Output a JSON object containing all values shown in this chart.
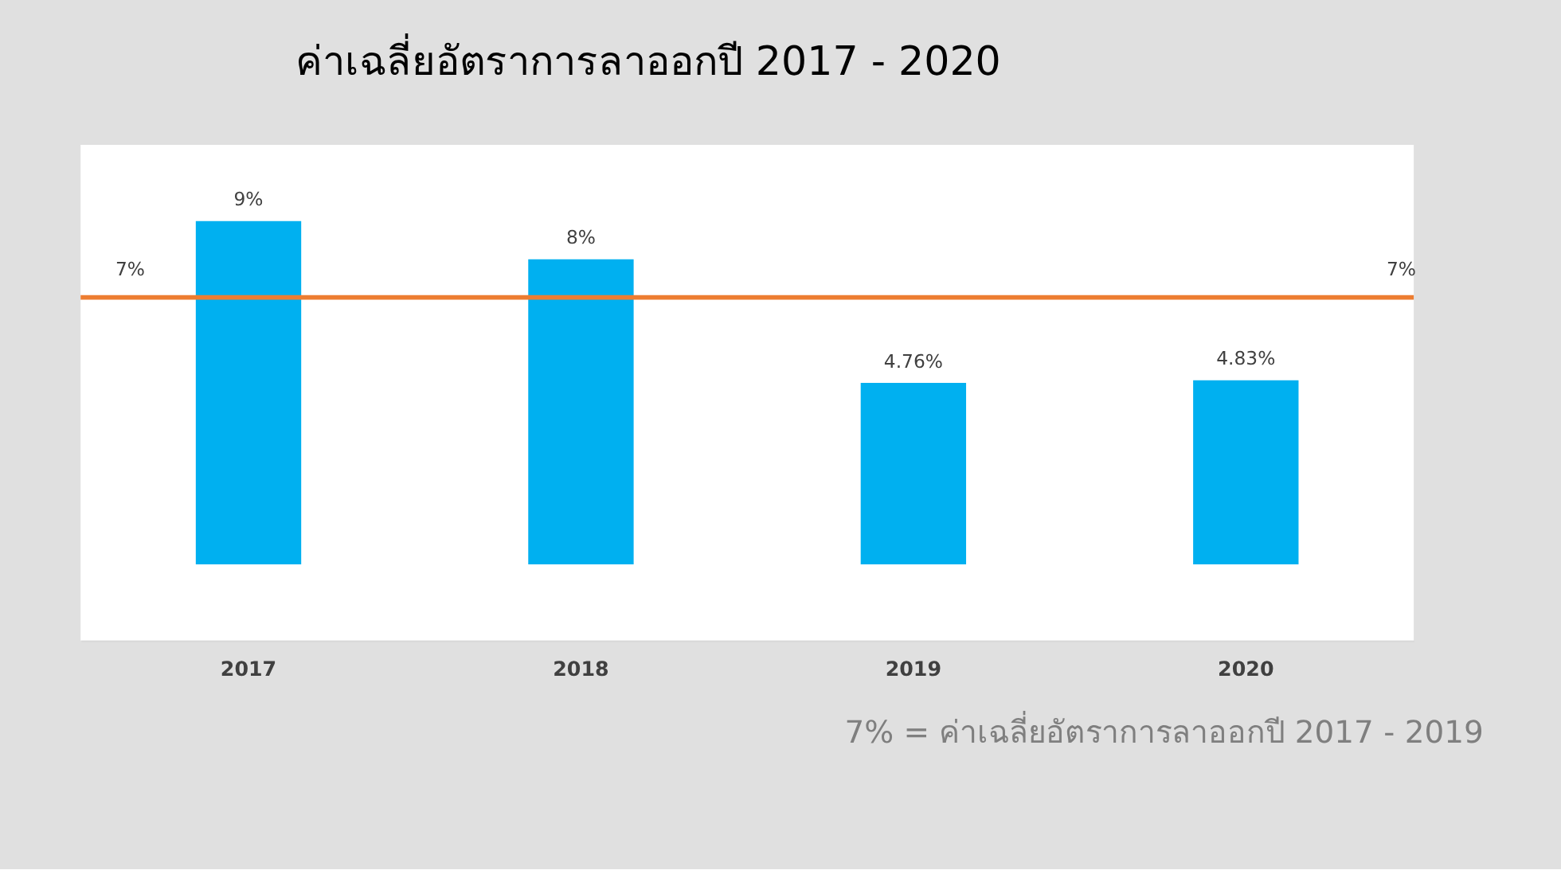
{
  "chart_data": {
    "type": "bar",
    "title": "ค่าเฉลี่ยอัตราการลาออกปี 2017 - 2020",
    "categories": [
      "2017",
      "2018",
      "2019",
      "2020"
    ],
    "values": [
      9,
      8,
      4.76,
      4.83
    ],
    "value_labels": [
      "9%",
      "8%",
      "4.76%",
      "4.83%"
    ],
    "color": "#00b0f0",
    "tick_labels": "x",
    "grid": false,
    "ref_lines": [
      {
        "axis": "y",
        "value": 7,
        "label": "7%",
        "color": "#ed7d31"
      }
    ],
    "annotations": [
      "7% = ค่าเฉลี่ยอัตราการลาออกปี 2017 - 2019"
    ]
  }
}
